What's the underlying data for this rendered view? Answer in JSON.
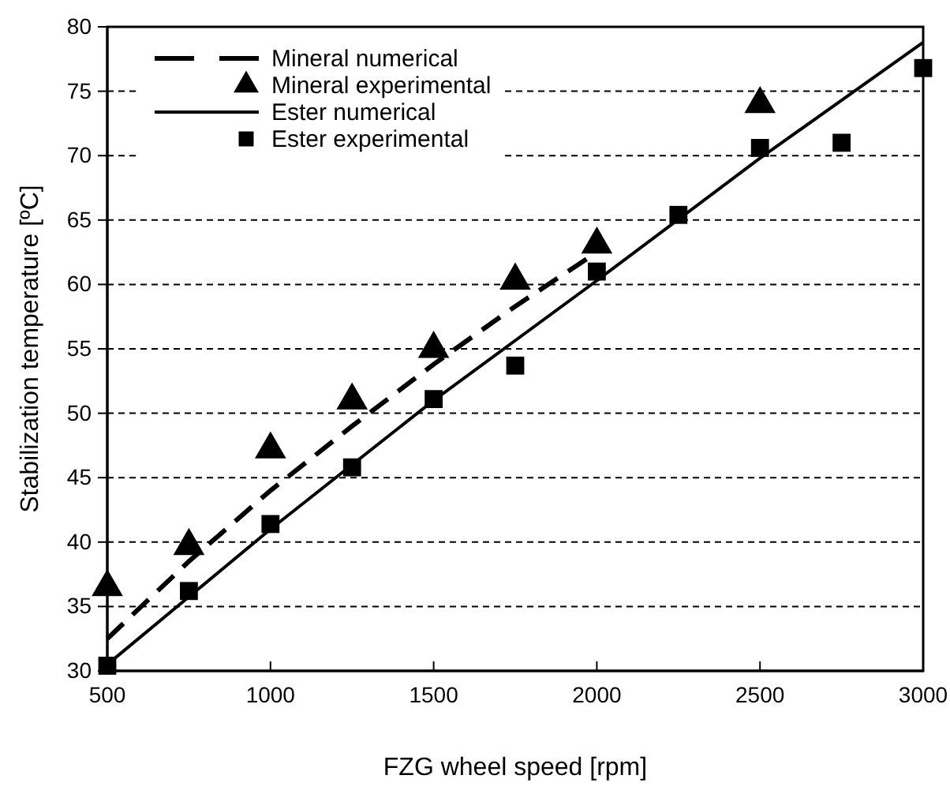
{
  "chart_data": {
    "type": "line",
    "xlabel": "FZG wheel speed [rpm]",
    "ylabel": "Stabilization temperature [ºC]",
    "xlim": [
      500,
      3000
    ],
    "xticks": [
      500,
      1000,
      1500,
      2000,
      2500,
      3000
    ],
    "ylim": [
      30,
      80
    ],
    "yticks": [
      30,
      35,
      40,
      45,
      50,
      55,
      60,
      65,
      70,
      75,
      80
    ],
    "grid": "y",
    "legend": "top left",
    "series": [
      {
        "name": "Mineral numerical",
        "line_style": "dashed",
        "color": "#000000",
        "x": [
          500,
          750,
          1000,
          1250,
          1500,
          1750,
          2000
        ],
        "values": [
          32.5,
          38.5,
          44,
          49,
          53.8,
          58.3,
          62.5
        ]
      },
      {
        "name": "Mineral experimental",
        "type": "scatter",
        "marker": "triangle",
        "color": "#000000",
        "x": [
          500,
          750,
          1000,
          1250,
          1500,
          1750,
          2000,
          2500
        ],
        "values": [
          36.5,
          39.7,
          47.2,
          51,
          55,
          60.3,
          63.1,
          74
        ]
      },
      {
        "name": "Ester numerical",
        "line_style": "solid",
        "color": "#000000",
        "x": [
          500,
          1000,
          1500,
          2000,
          2500,
          3000
        ],
        "values": [
          30.5,
          41,
          51,
          60.3,
          69.8,
          78.8
        ]
      },
      {
        "name": "Ester experimental",
        "type": "scatter",
        "marker": "square",
        "color": "#000000",
        "x": [
          500,
          750,
          1000,
          1250,
          1500,
          1750,
          2000,
          2250,
          2500,
          2750,
          3000
        ],
        "values": [
          30.4,
          36.2,
          41.4,
          45.8,
          51.1,
          53.7,
          61,
          65.4,
          70.6,
          71,
          76.8
        ]
      }
    ]
  }
}
